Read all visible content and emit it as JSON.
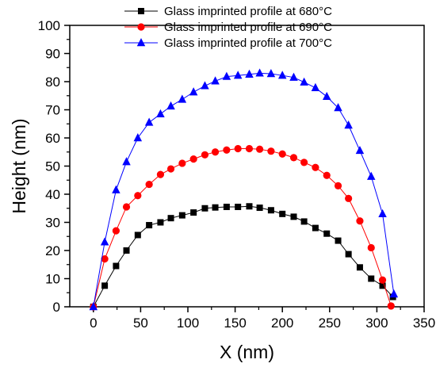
{
  "chart_data": {
    "type": "line",
    "title": "",
    "xlabel": "X (nm)",
    "ylabel": "Height (nm)",
    "xlim": [
      -25,
      350
    ],
    "ylim": [
      0,
      100
    ],
    "x_ticks": [
      0,
      50,
      100,
      150,
      200,
      250,
      300,
      350
    ],
    "y_ticks": [
      0,
      10,
      20,
      30,
      40,
      50,
      60,
      70,
      80,
      90,
      100
    ],
    "grid": false,
    "legend_position": "top-center",
    "series": [
      {
        "name": "Glass imprinted profile at 680°C",
        "color": "#000000",
        "marker": "square",
        "x": [
          0,
          12,
          24,
          35,
          47,
          59,
          71,
          82,
          94,
          106,
          118,
          129,
          141,
          153,
          165,
          176,
          188,
          200,
          212,
          223,
          235,
          247,
          259,
          270,
          282,
          294,
          306,
          317
        ],
        "y": [
          0,
          7.5,
          14.5,
          20,
          25.5,
          29,
          30,
          31.5,
          32.5,
          33.5,
          35,
          35.3,
          35.5,
          35.5,
          35.7,
          35.2,
          34.3,
          33,
          32,
          30.3,
          28,
          26,
          23.5,
          18.7,
          14,
          10,
          7.5,
          3.5
        ]
      },
      {
        "name": "Glass imprinted profile at 690°C",
        "color": "#ff0000",
        "marker": "circle",
        "x": [
          0,
          12,
          24,
          35,
          47,
          59,
          71,
          82,
          94,
          106,
          118,
          129,
          141,
          153,
          165,
          176,
          188,
          200,
          212,
          223,
          235,
          247,
          259,
          270,
          282,
          294,
          306,
          315
        ],
        "y": [
          0,
          17,
          27,
          35.5,
          39.5,
          43.5,
          47,
          49,
          51,
          52.5,
          54,
          55,
          55.7,
          56.2,
          56.2,
          56,
          55.3,
          54.3,
          53,
          51.3,
          49.5,
          46.7,
          43,
          38.5,
          30.5,
          21,
          9.5,
          0.3
        ]
      },
      {
        "name": "Glass imprinted profile at 700°C",
        "color": "#0000ff",
        "marker": "triangle",
        "x": [
          0,
          12,
          24,
          35,
          47,
          59,
          71,
          82,
          94,
          106,
          118,
          129,
          141,
          153,
          165,
          176,
          188,
          200,
          212,
          223,
          235,
          247,
          259,
          270,
          282,
          294,
          306,
          318
        ],
        "y": [
          0,
          23,
          41.5,
          51.5,
          60,
          65.5,
          68.5,
          71.3,
          73.7,
          76.3,
          78.5,
          80.2,
          81.8,
          82.2,
          82.6,
          83,
          82.8,
          82.2,
          81.5,
          79.8,
          77.8,
          74.7,
          70.7,
          64.5,
          55.5,
          46.3,
          33,
          4.5
        ]
      }
    ]
  }
}
